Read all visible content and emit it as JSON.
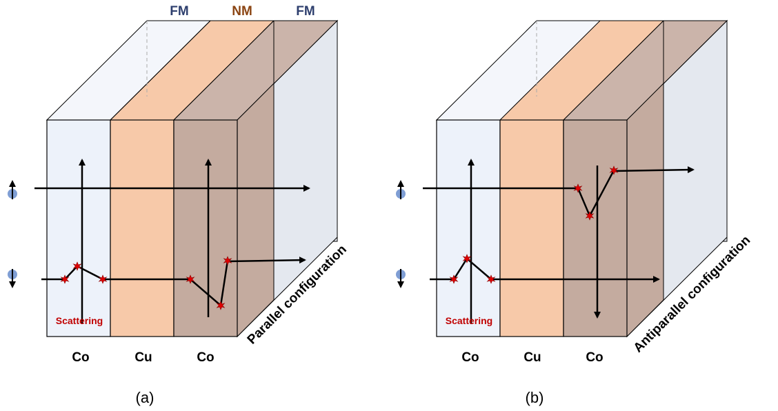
{
  "colors": {
    "fm_label": "#2e3f6e",
    "nm_label": "#8b4513",
    "co_face": "#edf2fa",
    "cu_face": "#f7c9a9",
    "co_dark_face": "#c4ab9f",
    "scatter_text": "#c00000",
    "scatter_dot": "#e00000",
    "spin_ball": "#7f9ed4"
  },
  "header_labels": {
    "fm_left": "FM",
    "nm": "NM",
    "fm_right": "FM"
  },
  "panels": [
    {
      "id": "a",
      "caption": "(a)",
      "layer_labels": [
        "Co",
        "Cu",
        "Co"
      ],
      "scattering_label": "Scattering",
      "configuration_label": "Parallel configuration"
    },
    {
      "id": "b",
      "caption": "(b)",
      "layer_labels": [
        "Co",
        "Cu",
        "Co"
      ],
      "scattering_label": "Scattering",
      "configuration_label": "Antiparallel configuration"
    }
  ]
}
